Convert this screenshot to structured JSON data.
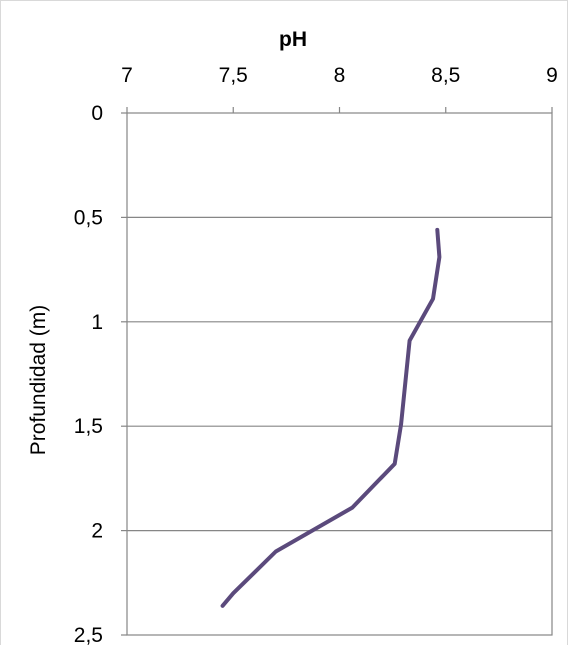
{
  "chart_data": {
    "type": "line",
    "title": "pH",
    "xlabel": "pH",
    "ylabel": "Profundidad (m)",
    "xlim": [
      7,
      9
    ],
    "ylim": [
      0,
      2.5
    ],
    "y_inverted": true,
    "x_axis_position": "top",
    "x_ticks": [
      "7",
      "7,5",
      "8",
      "8,5",
      "9"
    ],
    "y_ticks": [
      "0",
      "0,5",
      "1",
      "1,5",
      "2",
      "2,5"
    ],
    "grid": "horizontal",
    "colors": {
      "line": "#5b4a7c",
      "grid": "#868686",
      "axis": "#868686"
    },
    "series": [
      {
        "x": [
          8.46,
          8.47,
          8.44,
          8.33,
          8.29,
          8.26,
          8.06,
          7.7,
          7.5,
          7.45
        ],
        "y": [
          0.56,
          0.69,
          0.89,
          1.09,
          1.49,
          1.68,
          1.89,
          2.1,
          2.3,
          2.36
        ]
      }
    ]
  }
}
